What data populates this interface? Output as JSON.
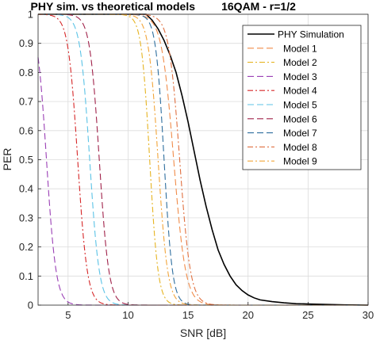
{
  "chart_data": {
    "type": "line",
    "title": "PHY sim. vs theoretical models",
    "subtitle": "16QAM - r=1/2",
    "xlabel": "SNR [dB]",
    "ylabel": "PER",
    "xlim": [
      2.5,
      30
    ],
    "ylim": [
      0,
      1
    ],
    "x_ticks": [
      "5",
      "10",
      "15",
      "20",
      "25",
      "30"
    ],
    "y_ticks": [
      "0",
      "0.1",
      "0.2",
      "0.3",
      "0.4",
      "0.5",
      "0.6",
      "0.7",
      "0.8",
      "0.9",
      "1"
    ],
    "grid": true,
    "legend_position": "top-right",
    "series": [
      {
        "name": "PHY Simulation",
        "color": "#000000",
        "style": "solid",
        "x": [
          2.5,
          11.0,
          11.5,
          12.0,
          12.5,
          13.0,
          13.5,
          14.0,
          14.5,
          15.0,
          15.5,
          16.0,
          16.5,
          17.0,
          17.5,
          18.0,
          18.5,
          19.0,
          19.5,
          20.0,
          20.5,
          21.0,
          22.0,
          23.0,
          24.0,
          25.0,
          26.0,
          27.0,
          28.0,
          30.0
        ],
        "y": [
          1.0,
          1.0,
          1.0,
          0.98,
          0.95,
          0.91,
          0.86,
          0.8,
          0.72,
          0.63,
          0.53,
          0.43,
          0.34,
          0.26,
          0.19,
          0.14,
          0.1,
          0.07,
          0.05,
          0.035,
          0.025,
          0.018,
          0.012,
          0.008,
          0.005,
          0.004,
          0.003,
          0.002,
          0.001,
          0.0
        ]
      },
      {
        "name": "Model 1",
        "color": "#f08c4a",
        "style": "longdash",
        "center": 13.8,
        "width": 0.5
      },
      {
        "name": "Model 2",
        "color": "#e6b422",
        "style": "dashdot",
        "center": 11.8,
        "width": 0.35
      },
      {
        "name": "Model 3",
        "color": "#9a3fb5",
        "style": "longdash",
        "center": 3.2,
        "width": 0.4
      },
      {
        "name": "Model 4",
        "color": "#d62728",
        "style": "dashdot",
        "center": 5.8,
        "width": 0.4
      },
      {
        "name": "Model 5",
        "color": "#5bc3e6",
        "style": "longdash",
        "center": 6.8,
        "width": 0.4
      },
      {
        "name": "Model 6",
        "color": "#a0224a",
        "style": "longdash",
        "center": 7.6,
        "width": 0.4
      },
      {
        "name": "Model 7",
        "color": "#2e6e9e",
        "style": "longdash",
        "center": 13.0,
        "width": 0.35
      },
      {
        "name": "Model 8",
        "color": "#e07040",
        "style": "dashdot",
        "center": 14.3,
        "width": 0.45
      },
      {
        "name": "Model 9",
        "color": "#f2a53a",
        "style": "dashdot",
        "center": 12.5,
        "width": 0.4
      }
    ]
  }
}
